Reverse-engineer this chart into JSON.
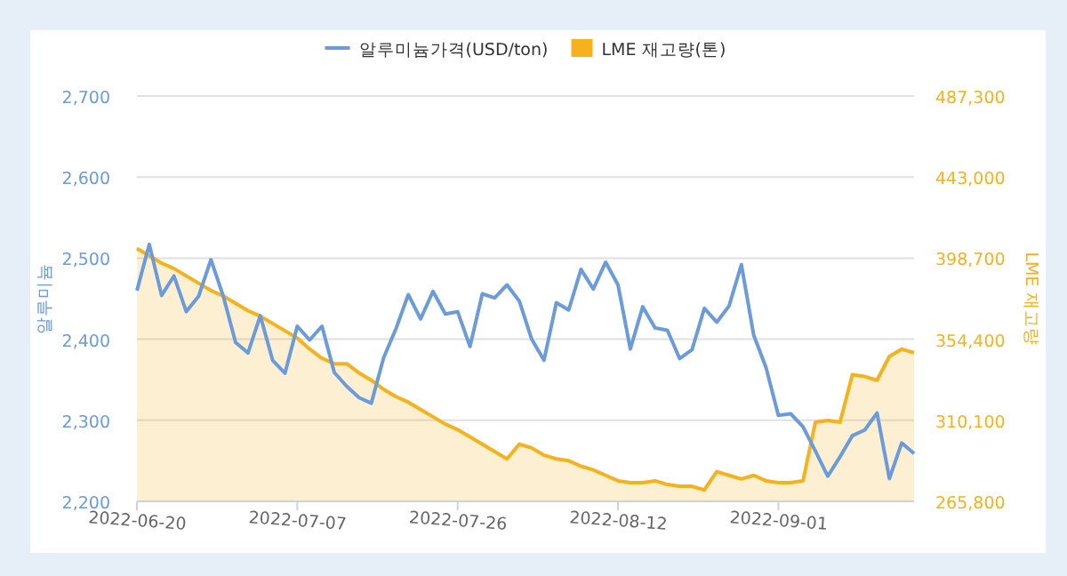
{
  "chart_data": {
    "type": "line",
    "ylabel": "알루미늄",
    "y2label": "LME 재고량",
    "categories": [
      "2022-06-20",
      null,
      null,
      null,
      null,
      null,
      null,
      null,
      null,
      null,
      null,
      null,
      null,
      "2022-07-07",
      null,
      null,
      null,
      null,
      null,
      null,
      null,
      null,
      null,
      null,
      null,
      null,
      "2022-07-26",
      null,
      null,
      null,
      null,
      null,
      null,
      null,
      null,
      null,
      null,
      null,
      null,
      "2022-08-12",
      null,
      null,
      null,
      null,
      null,
      null,
      null,
      null,
      null,
      null,
      null,
      null,
      "2022-09-01",
      null,
      null,
      null,
      null,
      null,
      null,
      null,
      null,
      null,
      null,
      null
    ],
    "series": [
      {
        "name": "알루미늄가격(USD/ton)",
        "color": "#6b9bdb",
        "values": [
          2460,
          2517,
          2454,
          2478,
          2434,
          2453,
          2498,
          2453,
          2396,
          2383,
          2429,
          2374,
          2358,
          2416,
          2399,
          2416,
          2359,
          2342,
          2328,
          2321,
          2377,
          2413,
          2455,
          2425,
          2459,
          2431,
          2434,
          2391,
          2456,
          2451,
          2467,
          2447,
          2400,
          2374,
          2445,
          2436,
          2486,
          2462,
          2495,
          2467,
          2388,
          2440,
          2414,
          2411,
          2376,
          2387,
          2438,
          2421,
          2441,
          2492,
          2405,
          2365,
          2306,
          2308,
          2292,
          2262,
          2231,
          2255,
          2281,
          2288,
          2309,
          2228,
          2272,
          2259
        ]
      },
      {
        "name": "LME 재고량(톤)",
        "type": "area",
        "axis": "y2",
        "color": "#f5b21c",
        "values": [
          404000,
          400000,
          396000,
          393000,
          389000,
          385000,
          381000,
          378000,
          374000,
          370000,
          367000,
          363000,
          359000,
          355000,
          349000,
          344000,
          341000,
          341000,
          336000,
          332000,
          327000,
          323000,
          320000,
          316000,
          312000,
          308000,
          305000,
          301000,
          297000,
          293000,
          289000,
          297000,
          295000,
          291000,
          289000,
          288000,
          285000,
          283000,
          280000,
          277000,
          276000,
          276000,
          277000,
          275000,
          274000,
          274000,
          272000,
          282000,
          280000,
          278000,
          280000,
          277000,
          276000,
          276000,
          277000,
          309000,
          310000,
          309000,
          335000,
          334000,
          332000,
          345000,
          349000,
          347000
        ]
      }
    ],
    "ylim": [
      2200,
      2700
    ],
    "yticks": [
      {
        "value": 2200,
        "label": "2,200"
      },
      {
        "value": 2300,
        "label": "2,300"
      },
      {
        "value": 2400,
        "label": "2,400"
      },
      {
        "value": 2500,
        "label": "2,500"
      },
      {
        "value": 2600,
        "label": "2,600"
      },
      {
        "value": 2700,
        "label": "2,700"
      }
    ],
    "y2lim": [
      265800,
      487300
    ],
    "y2ticks": [
      {
        "value": 265800,
        "label": "265,800"
      },
      {
        "value": 310100,
        "label": "310,100"
      },
      {
        "value": 354400,
        "label": "354,400"
      },
      {
        "value": 398700,
        "label": "398,700"
      },
      {
        "value": 443000,
        "label": "443,000"
      },
      {
        "value": 487300,
        "label": "487,300"
      }
    ],
    "grid": "y",
    "legend": "top"
  }
}
